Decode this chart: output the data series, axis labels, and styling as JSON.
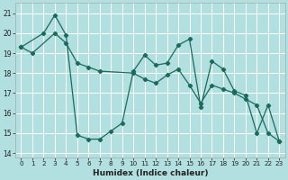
{
  "xlabel": "Humidex (Indice chaleur)",
  "bg_color": "#b2dfdf",
  "grid_color": "#ffffff",
  "line_color": "#1a6b5e",
  "xlim": [
    -0.5,
    23.5
  ],
  "ylim": [
    13.8,
    21.5
  ],
  "yticks": [
    14,
    15,
    16,
    17,
    18,
    19,
    20,
    21
  ],
  "xticks": [
    0,
    1,
    2,
    3,
    4,
    5,
    6,
    7,
    8,
    9,
    10,
    11,
    12,
    13,
    14,
    15,
    16,
    17,
    18,
    19,
    20,
    21,
    22,
    23
  ],
  "series1_x": [
    0,
    2,
    3,
    4,
    5,
    6,
    7,
    8,
    9,
    10,
    11,
    12,
    13,
    14,
    15,
    16,
    17,
    18,
    19,
    20,
    21,
    22,
    23
  ],
  "series1_y": [
    19.3,
    20.0,
    20.9,
    19.9,
    14.9,
    14.7,
    14.7,
    15.1,
    15.5,
    18.1,
    18.9,
    18.4,
    18.5,
    19.4,
    19.7,
    16.3,
    18.6,
    18.2,
    17.1,
    16.9,
    15.0,
    16.4,
    14.6
  ],
  "series2_x": [
    0,
    1,
    3,
    4,
    5,
    6,
    7,
    10,
    11,
    12,
    13,
    14,
    15,
    16,
    17,
    18,
    19,
    20,
    21,
    22,
    23
  ],
  "series2_y": [
    19.3,
    19.0,
    20.0,
    19.5,
    18.5,
    18.3,
    18.1,
    18.0,
    17.7,
    17.5,
    17.9,
    18.2,
    17.4,
    16.5,
    17.4,
    17.2,
    17.0,
    16.7,
    16.4,
    15.0,
    14.6
  ]
}
